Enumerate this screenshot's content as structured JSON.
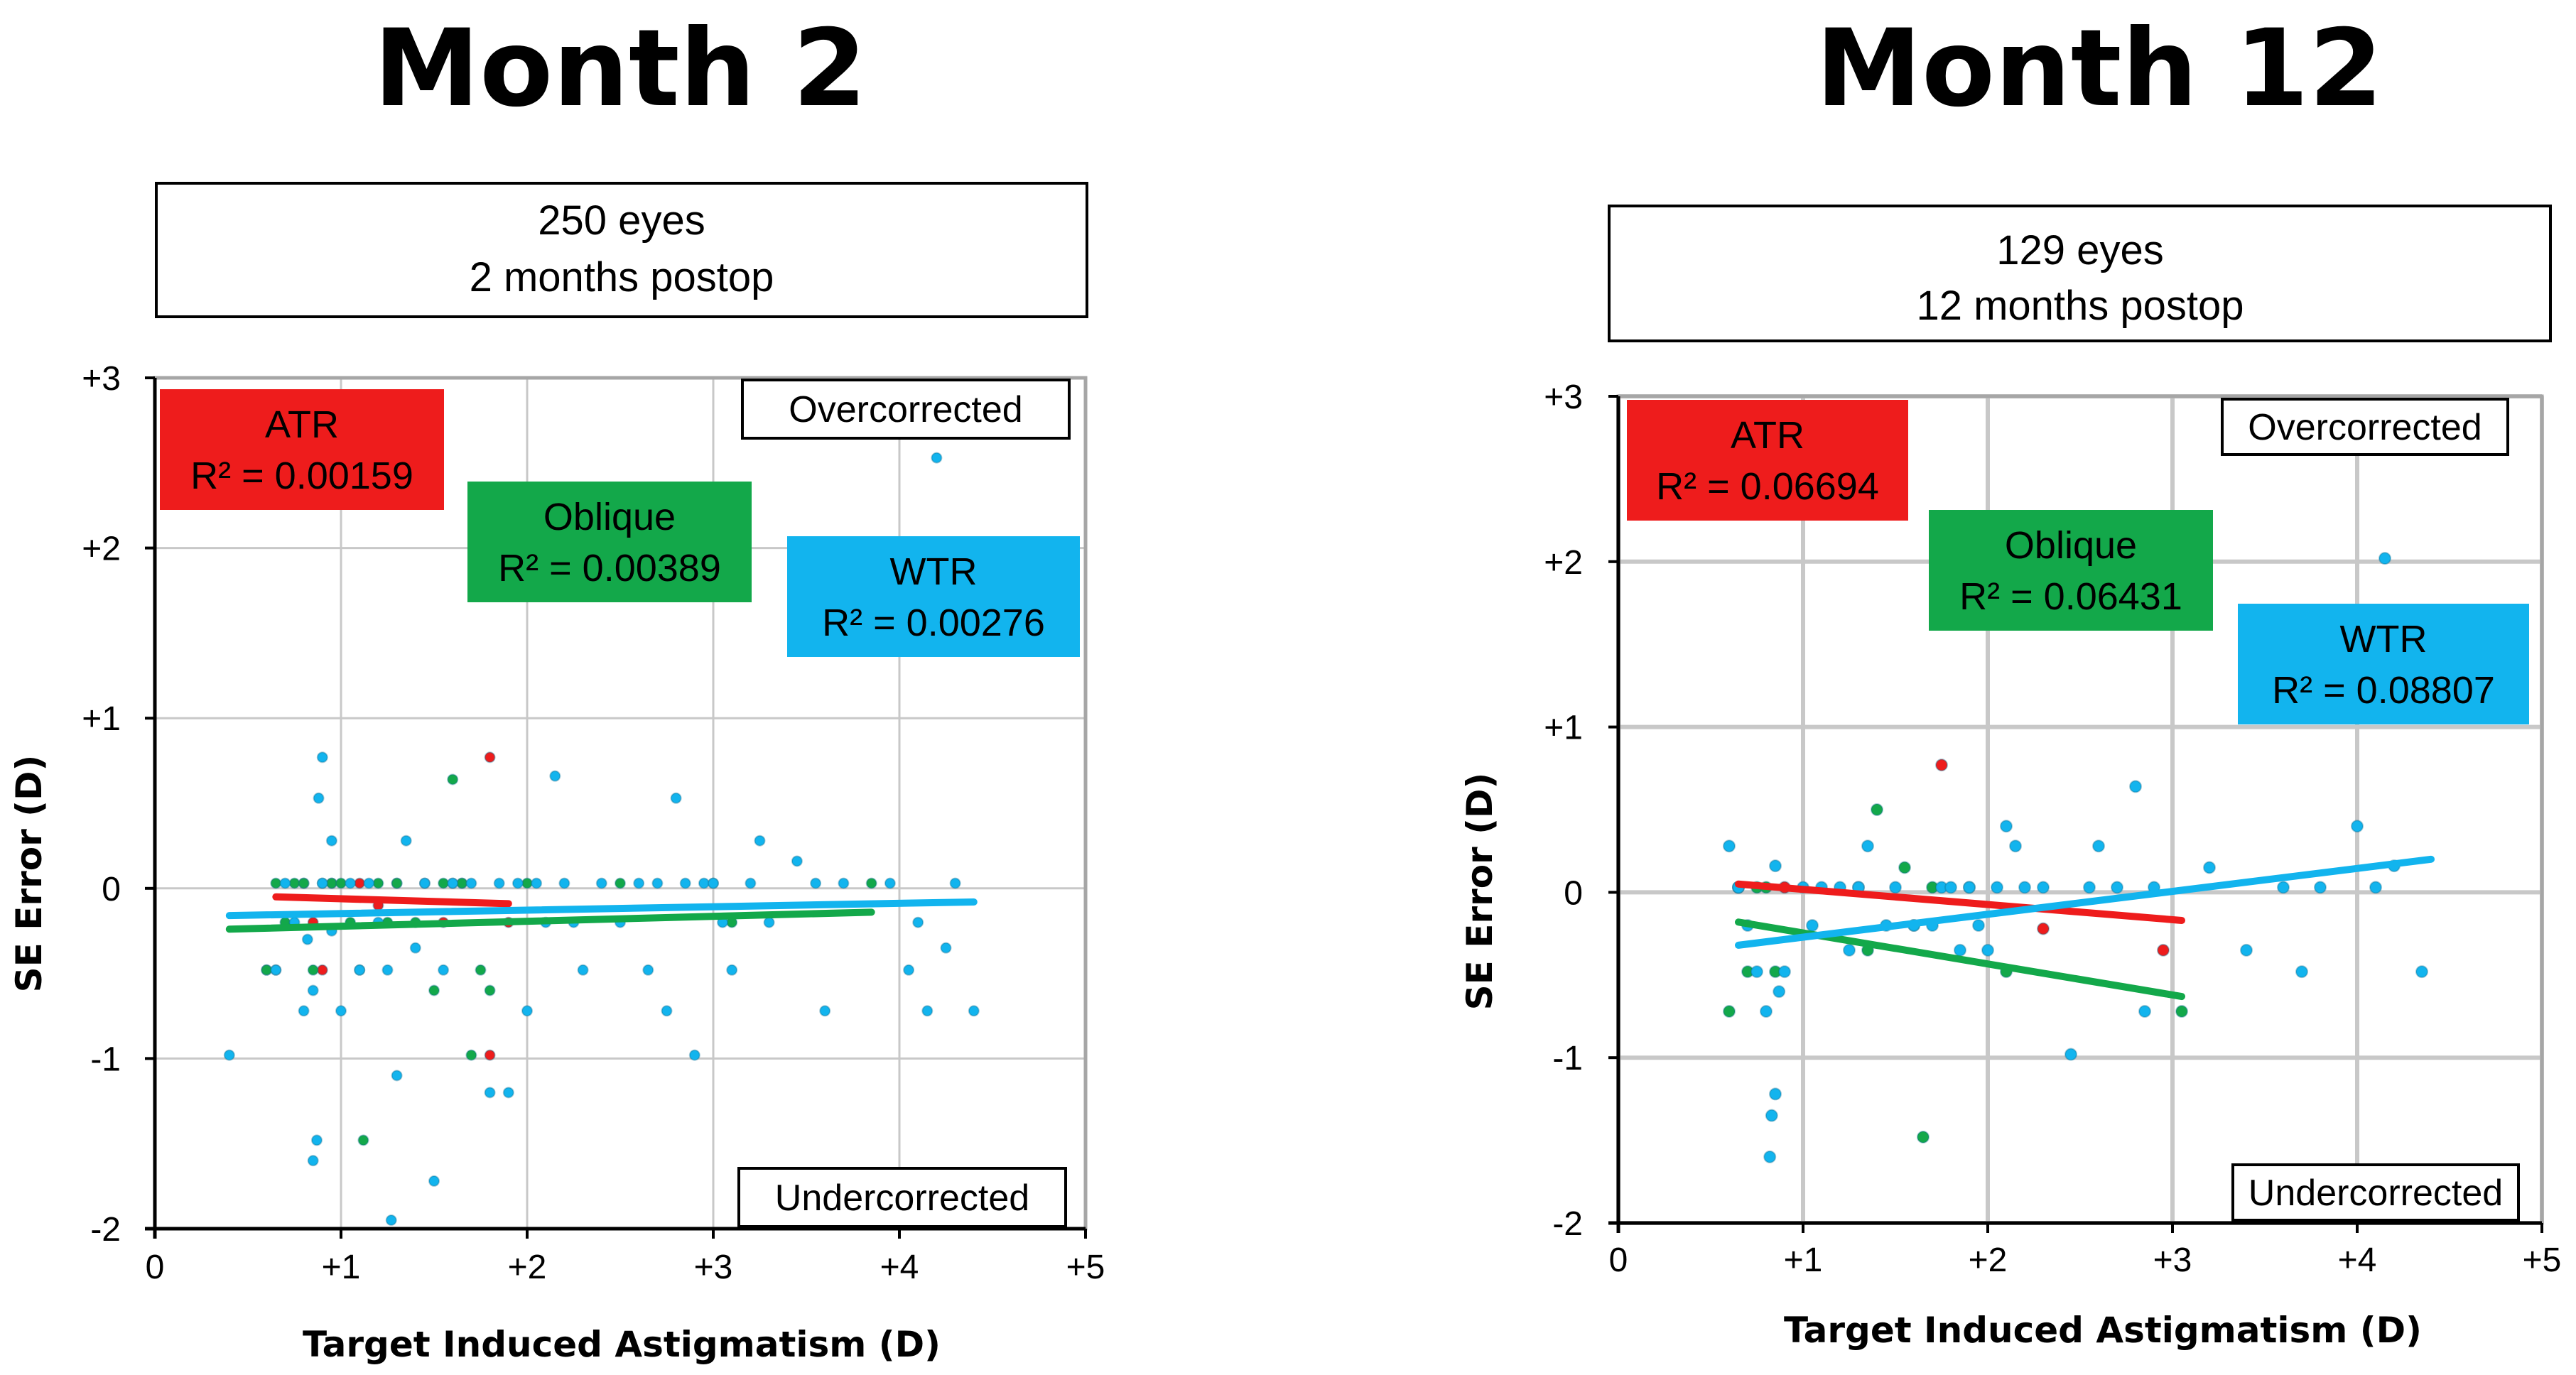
{
  "colors": {
    "atr": "#ee1c1c",
    "oblique": "#13a84a",
    "wtr": "#12b4ee",
    "grid": "#c8c8c8",
    "frame": "#a6a6a6"
  },
  "chart_data": [
    {
      "type": "scatter",
      "title": "Month 2",
      "box_line1": "250 eyes",
      "box_line2": "2 months postop",
      "xlabel": "Target Induced Astigmatism (D)",
      "ylabel": "SE Error (D)",
      "xlim": [
        0,
        5
      ],
      "ylim": [
        -2,
        3
      ],
      "xticks": [
        "0",
        "+1",
        "+2",
        "+3",
        "+4",
        "+5"
      ],
      "yticks": [
        "-2",
        "-1",
        "0",
        "+1",
        "+2",
        "+3"
      ],
      "over_label": "Overcorrected",
      "under_label": "Undercorrected",
      "series": [
        {
          "name": "ATR",
          "r2": "R² = 0.00159",
          "fit": [
            [
              0.65,
              -0.05
            ],
            [
              1.9,
              -0.09
            ]
          ],
          "points": [
            [
              0.6,
              -0.48
            ],
            [
              0.65,
              -0.48
            ],
            [
              0.8,
              0.03
            ],
            [
              0.85,
              -0.2
            ],
            [
              0.9,
              -0.48
            ],
            [
              0.95,
              0.03
            ],
            [
              1.1,
              0.03
            ],
            [
              1.2,
              -0.1
            ],
            [
              1.3,
              0.03
            ],
            [
              1.45,
              0.03
            ],
            [
              1.55,
              -0.2
            ],
            [
              1.6,
              0.03
            ],
            [
              1.65,
              0.03
            ],
            [
              1.8,
              0.77
            ],
            [
              1.8,
              -0.98
            ],
            [
              1.9,
              -0.2
            ]
          ]
        },
        {
          "name": "Oblique",
          "r2": "R² = 0.00389",
          "fit": [
            [
              0.4,
              -0.24
            ],
            [
              3.85,
              -0.14
            ]
          ],
          "points": [
            [
              0.6,
              -0.48
            ],
            [
              0.65,
              0.03
            ],
            [
              0.7,
              -0.2
            ],
            [
              0.75,
              0.03
            ],
            [
              0.8,
              0.03
            ],
            [
              0.85,
              -0.48
            ],
            [
              0.9,
              0.03
            ],
            [
              0.95,
              0.03
            ],
            [
              1.0,
              0.03
            ],
            [
              1.05,
              -0.2
            ],
            [
              1.1,
              -0.48
            ],
            [
              1.12,
              -1.48
            ],
            [
              1.2,
              0.03
            ],
            [
              1.25,
              -0.2
            ],
            [
              1.3,
              0.03
            ],
            [
              1.4,
              -0.2
            ],
            [
              1.5,
              -0.6
            ],
            [
              1.55,
              0.03
            ],
            [
              1.6,
              0.64
            ],
            [
              1.65,
              0.03
            ],
            [
              1.7,
              -0.98
            ],
            [
              1.75,
              -0.48
            ],
            [
              1.8,
              -0.6
            ],
            [
              2.0,
              0.03
            ],
            [
              2.5,
              0.03
            ],
            [
              3.0,
              0.03
            ],
            [
              3.1,
              -0.2
            ],
            [
              3.85,
              0.03
            ]
          ]
        },
        {
          "name": "WTR",
          "r2": "R² = 0.00276",
          "fit": [
            [
              0.4,
              -0.16
            ],
            [
              4.4,
              -0.08
            ]
          ],
          "points": [
            [
              0.4,
              -0.98
            ],
            [
              0.65,
              -0.48
            ],
            [
              0.7,
              0.03
            ],
            [
              0.75,
              -0.2
            ],
            [
              0.8,
              -0.72
            ],
            [
              0.82,
              -0.3
            ],
            [
              0.85,
              -0.6
            ],
            [
              0.85,
              -1.6
            ],
            [
              0.87,
              -1.48
            ],
            [
              0.88,
              0.53
            ],
            [
              0.9,
              0.77
            ],
            [
              0.9,
              0.03
            ],
            [
              0.95,
              0.28
            ],
            [
              0.95,
              -0.25
            ],
            [
              1.0,
              -0.72
            ],
            [
              1.05,
              0.03
            ],
            [
              1.1,
              -0.48
            ],
            [
              1.15,
              0.03
            ],
            [
              1.2,
              -0.2
            ],
            [
              1.25,
              -0.48
            ],
            [
              1.27,
              -1.95
            ],
            [
              1.3,
              -1.1
            ],
            [
              1.35,
              0.28
            ],
            [
              1.4,
              -0.35
            ],
            [
              1.45,
              0.03
            ],
            [
              1.5,
              -1.72
            ],
            [
              1.55,
              -0.48
            ],
            [
              1.6,
              0.03
            ],
            [
              1.7,
              0.03
            ],
            [
              1.8,
              -1.2
            ],
            [
              1.85,
              0.03
            ],
            [
              1.9,
              -1.2
            ],
            [
              1.95,
              0.03
            ],
            [
              2.0,
              -0.72
            ],
            [
              2.05,
              0.03
            ],
            [
              2.1,
              -0.2
            ],
            [
              2.15,
              0.66
            ],
            [
              2.2,
              0.03
            ],
            [
              2.25,
              -0.2
            ],
            [
              2.3,
              -0.48
            ],
            [
              2.4,
              0.03
            ],
            [
              2.5,
              -0.2
            ],
            [
              2.6,
              0.03
            ],
            [
              2.65,
              -0.48
            ],
            [
              2.7,
              0.03
            ],
            [
              2.75,
              -0.72
            ],
            [
              2.8,
              0.53
            ],
            [
              2.85,
              0.03
            ],
            [
              2.9,
              -0.98
            ],
            [
              2.95,
              0.03
            ],
            [
              3.0,
              0.03
            ],
            [
              3.05,
              -0.2
            ],
            [
              3.1,
              -0.48
            ],
            [
              3.2,
              0.03
            ],
            [
              3.25,
              0.28
            ],
            [
              3.3,
              -0.2
            ],
            [
              3.45,
              0.16
            ],
            [
              3.55,
              0.03
            ],
            [
              3.6,
              -0.72
            ],
            [
              3.7,
              0.03
            ],
            [
              3.95,
              0.03
            ],
            [
              4.05,
              -0.48
            ],
            [
              4.1,
              -0.2
            ],
            [
              4.15,
              -0.72
            ],
            [
              4.2,
              2.53
            ],
            [
              4.25,
              -0.35
            ],
            [
              4.3,
              0.03
            ],
            [
              4.4,
              -0.72
            ]
          ]
        }
      ]
    },
    {
      "type": "scatter",
      "title": "Month 12",
      "box_line1": "129 eyes",
      "box_line2": "12 months postop",
      "xlabel": "Target Induced Astigmatism (D)",
      "ylabel": "SE Error (D)",
      "xlim": [
        0,
        5
      ],
      "ylim": [
        -2,
        3
      ],
      "xticks": [
        "0",
        "+1",
        "+2",
        "+3",
        "+4",
        "+5"
      ],
      "yticks": [
        "-2",
        "-1",
        "0",
        "+1",
        "+2",
        "+3"
      ],
      "over_label": "Overcorrected",
      "under_label": "Undercorrected",
      "series": [
        {
          "name": "ATR",
          "r2": "R² = 0.06694",
          "fit": [
            [
              0.65,
              0.05
            ],
            [
              3.05,
              -0.17
            ]
          ],
          "points": [
            [
              0.65,
              0.03
            ],
            [
              0.9,
              0.03
            ],
            [
              1.3,
              0.03
            ],
            [
              1.75,
              0.77
            ],
            [
              2.3,
              -0.22
            ],
            [
              2.95,
              -0.35
            ]
          ]
        },
        {
          "name": "Oblique",
          "r2": "R² = 0.06431",
          "fit": [
            [
              0.65,
              -0.18
            ],
            [
              3.05,
              -0.63
            ]
          ],
          "points": [
            [
              0.6,
              -0.72
            ],
            [
              0.65,
              0.03
            ],
            [
              0.7,
              -0.48
            ],
            [
              0.75,
              0.03
            ],
            [
              0.8,
              0.03
            ],
            [
              0.85,
              -0.48
            ],
            [
              1.35,
              -0.35
            ],
            [
              1.4,
              0.5
            ],
            [
              1.55,
              0.15
            ],
            [
              1.6,
              -0.2
            ],
            [
              1.65,
              -1.48
            ],
            [
              1.7,
              0.03
            ],
            [
              1.9,
              0.03
            ],
            [
              2.1,
              -0.48
            ],
            [
              3.05,
              -0.72
            ]
          ]
        },
        {
          "name": "WTR",
          "r2": "R² = 0.08807",
          "fit": [
            [
              0.65,
              -0.32
            ],
            [
              4.4,
              0.2
            ]
          ],
          "points": [
            [
              0.6,
              0.28
            ],
            [
              0.65,
              0.03
            ],
            [
              0.7,
              -0.2
            ],
            [
              0.75,
              -0.48
            ],
            [
              0.8,
              -0.72
            ],
            [
              0.82,
              -1.6
            ],
            [
              0.83,
              -1.35
            ],
            [
              0.85,
              -1.22
            ],
            [
              0.85,
              0.16
            ],
            [
              0.87,
              -0.6
            ],
            [
              0.9,
              -0.48
            ],
            [
              1.0,
              0.03
            ],
            [
              1.05,
              -0.2
            ],
            [
              1.1,
              0.03
            ],
            [
              1.2,
              0.03
            ],
            [
              1.25,
              -0.35
            ],
            [
              1.3,
              0.03
            ],
            [
              1.35,
              0.28
            ],
            [
              1.45,
              -0.2
            ],
            [
              1.5,
              0.03
            ],
            [
              1.6,
              -0.2
            ],
            [
              1.7,
              -0.2
            ],
            [
              1.75,
              0.03
            ],
            [
              1.8,
              0.03
            ],
            [
              1.85,
              -0.35
            ],
            [
              1.9,
              0.03
            ],
            [
              1.95,
              -0.2
            ],
            [
              2.0,
              -0.35
            ],
            [
              2.05,
              0.03
            ],
            [
              2.1,
              0.4
            ],
            [
              2.15,
              0.28
            ],
            [
              2.2,
              0.03
            ],
            [
              2.3,
              0.03
            ],
            [
              2.45,
              -0.98
            ],
            [
              2.55,
              0.03
            ],
            [
              2.6,
              0.28
            ],
            [
              2.7,
              0.03
            ],
            [
              2.8,
              0.64
            ],
            [
              2.85,
              -0.72
            ],
            [
              2.9,
              0.03
            ],
            [
              3.2,
              0.15
            ],
            [
              3.4,
              -0.35
            ],
            [
              3.6,
              0.03
            ],
            [
              3.7,
              -0.48
            ],
            [
              3.8,
              0.03
            ],
            [
              4.0,
              0.4
            ],
            [
              4.1,
              0.03
            ],
            [
              4.15,
              2.02
            ],
            [
              4.2,
              0.16
            ],
            [
              4.35,
              -0.48
            ]
          ]
        }
      ]
    }
  ]
}
